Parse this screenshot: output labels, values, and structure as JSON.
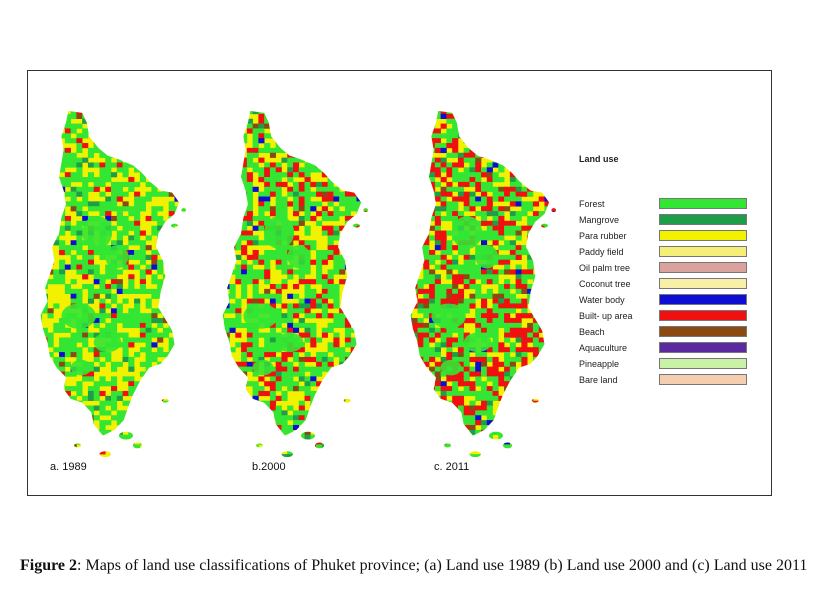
{
  "figure": {
    "maps": [
      {
        "label": "a. 1989",
        "mix": {
          "green": 0.46,
          "yellow": 0.4,
          "red": 0.06,
          "darkgreen": 0.04,
          "blue": 0.02,
          "brown": 0.02
        }
      },
      {
        "label": "b.2000",
        "mix": {
          "green": 0.45,
          "yellow": 0.3,
          "red": 0.17,
          "darkgreen": 0.04,
          "blue": 0.02,
          "brown": 0.02
        }
      },
      {
        "label": "c. 2011",
        "mix": {
          "green": 0.42,
          "yellow": 0.22,
          "red": 0.28,
          "darkgreen": 0.04,
          "blue": 0.02,
          "brown": 0.02
        }
      }
    ],
    "legend": {
      "title": "Land use",
      "items": [
        {
          "label": "Forest",
          "color": "#33e633"
        },
        {
          "label": "Mangrove",
          "color": "#1f9e4a"
        },
        {
          "label": "Para rubber",
          "color": "#f2f200"
        },
        {
          "label": "Paddy field",
          "color": "#f5ef7a"
        },
        {
          "label": "Oil palm tree",
          "color": "#d9a29c"
        },
        {
          "label": "Coconut tree",
          "color": "#f7f0a6"
        },
        {
          "label": "Water body",
          "color": "#0d0dd4"
        },
        {
          "label": "Built- up area",
          "color": "#f01010"
        },
        {
          "label": "Beach",
          "color": "#8a4a12"
        },
        {
          "label": "Aquaculture",
          "color": "#5a2a9e"
        },
        {
          "label": "Pineapple",
          "color": "#c9f2a6"
        },
        {
          "label": "Bare land",
          "color": "#f5ceb0"
        }
      ]
    }
  },
  "caption": {
    "label": "Figure 2",
    "text": ":  Maps of land use classifications of Phuket province; (a) Land use 1989 (b) Land use 2000 and (c) Land use 2011"
  }
}
